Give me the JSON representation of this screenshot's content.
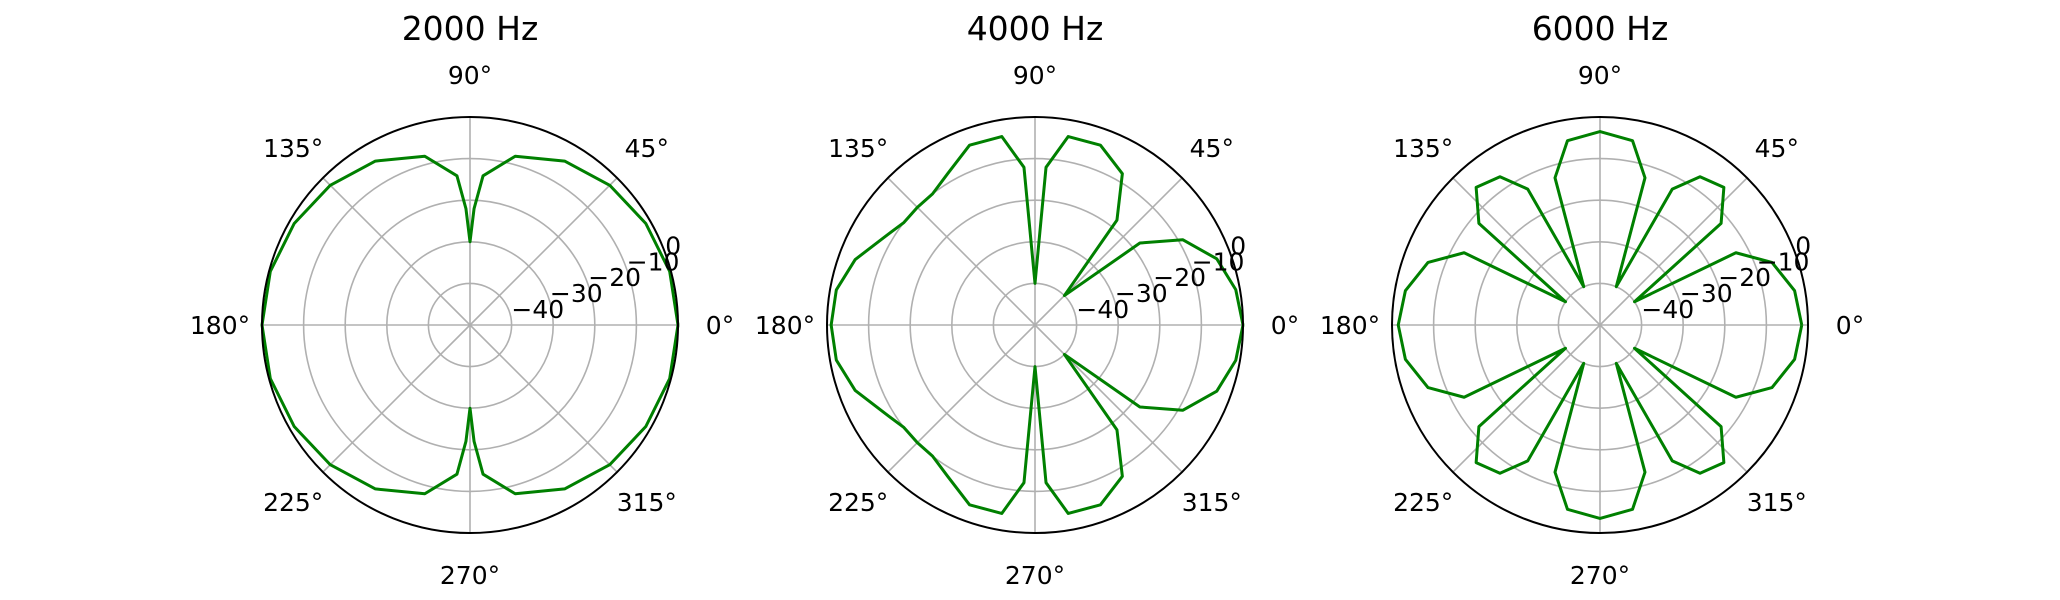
{
  "chart_data": [
    {
      "type": "line",
      "projection": "polar",
      "title": "2000 Hz",
      "theta_tick_labels": [
        "0°",
        "45°",
        "90°",
        "135°",
        "180°",
        "225°",
        "270°",
        "315°"
      ],
      "radial_tick_labels": [
        "−40",
        "−30",
        "−20",
        "−10",
        "0"
      ],
      "rlim": [
        -50,
        0
      ],
      "grid": true,
      "line_color": "#008000",
      "series": [
        {
          "theta_deg": [
            0,
            15,
            30,
            45,
            60,
            75,
            85,
            88,
            90,
            92,
            95,
            105,
            120,
            135,
            150,
            165,
            180,
            195,
            210,
            225,
            240,
            255,
            265,
            268,
            270,
            272,
            275,
            285,
            300,
            315,
            330,
            345,
            360
          ],
          "r_db": [
            0,
            -0.3,
            -1.2,
            -2.5,
            -4.5,
            -8,
            -14,
            -22,
            -30,
            -22,
            -14,
            -8,
            -4.5,
            -2.5,
            -1.2,
            -0.3,
            0,
            -0.3,
            -1.2,
            -2.5,
            -4.5,
            -8,
            -14,
            -22,
            -30,
            -22,
            -14,
            -8,
            -4.5,
            -2.5,
            -1.2,
            -0.3,
            0
          ]
        }
      ]
    },
    {
      "type": "line",
      "projection": "polar",
      "title": "4000 Hz",
      "theta_tick_labels": [
        "0°",
        "45°",
        "90°",
        "135°",
        "180°",
        "225°",
        "270°",
        "315°"
      ],
      "radial_tick_labels": [
        "−40",
        "−30",
        "−20",
        "−10",
        "0"
      ],
      "rlim": [
        -50,
        0
      ],
      "grid": true,
      "line_color": "#008000",
      "series": [
        {
          "theta_deg": [
            0,
            10,
            20,
            30,
            38,
            45,
            52,
            60,
            70,
            80,
            86,
            90,
            94,
            100,
            110,
            120,
            128,
            135,
            142,
            150,
            160,
            170,
            180,
            190,
            200,
            210,
            218,
            225,
            232,
            240,
            250,
            260,
            266,
            270,
            274,
            280,
            290,
            300,
            308,
            315,
            322,
            330,
            340,
            350,
            360
          ],
          "r_db": [
            0,
            -1,
            -3.5,
            -9,
            -18,
            -40,
            -18,
            -8,
            -4,
            -4,
            -12,
            -40,
            -12,
            -4,
            -4,
            -8,
            -10,
            -10,
            -10,
            -8,
            -4,
            -1.5,
            -1,
            -1.5,
            -4,
            -8,
            -10,
            -10,
            -10,
            -8,
            -4,
            -4,
            -12,
            -40,
            -12,
            -4,
            -4,
            -8,
            -18,
            -40,
            -18,
            -9,
            -3.5,
            -1,
            0
          ]
        }
      ]
    },
    {
      "type": "line",
      "projection": "polar",
      "title": "6000 Hz",
      "theta_tick_labels": [
        "0°",
        "45°",
        "90°",
        "135°",
        "180°",
        "225°",
        "270°",
        "315°"
      ],
      "radial_tick_labels": [
        "−40",
        "−30",
        "−20",
        "−10",
        "0"
      ],
      "rlim": [
        -50,
        0
      ],
      "grid": true,
      "line_color": "#008000",
      "series": [
        {
          "theta_deg": [
            0,
            10,
            20,
            28,
            34,
            40,
            48,
            56,
            62,
            67,
            73,
            80,
            90,
            100,
            107,
            113,
            118,
            124,
            132,
            140,
            146,
            152,
            160,
            170,
            180,
            190,
            200,
            208,
            214,
            220,
            228,
            236,
            242,
            247,
            253,
            260,
            270,
            280,
            287,
            293,
            298,
            304,
            312,
            320,
            326,
            332,
            340,
            350,
            360
          ],
          "r_db": [
            -1.5,
            -2.5,
            -6,
            -13,
            -40,
            -12,
            -5.5,
            -7,
            -13,
            -40,
            -13,
            -5,
            -3.5,
            -5,
            -13,
            -40,
            -13,
            -7,
            -5.5,
            -12,
            -40,
            -13,
            -6,
            -2.5,
            -1.5,
            -2.5,
            -6,
            -13,
            -40,
            -12,
            -5.5,
            -7,
            -13,
            -40,
            -13,
            -5,
            -3.5,
            -5,
            -13,
            -40,
            -13,
            -7,
            -5.5,
            -12,
            -40,
            -13,
            -6,
            -2.5,
            -1.5
          ]
        }
      ]
    }
  ]
}
